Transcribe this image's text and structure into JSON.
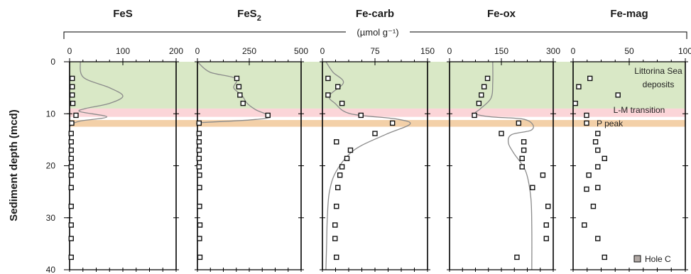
{
  "unit_label": "(µmol g⁻¹)",
  "y_axis": {
    "label": "Sediment depth (mcd)",
    "range": [
      0,
      40
    ],
    "ticks": [
      "0",
      "10",
      "20",
      "30",
      "40"
    ]
  },
  "zones": [
    {
      "label": "Littorina Sea deposits",
      "label_lines": [
        "Littorina Sea",
        "deposits"
      ],
      "depth_range": [
        0,
        9
      ],
      "color": "#d9e8c6"
    },
    {
      "label": "L-M transition",
      "label_lines": [
        "L-M transition"
      ],
      "depth_range": [
        9,
        10.6
      ],
      "color": "#fbd5d8"
    },
    {
      "label": "P peak",
      "label_lines": [
        "P peak"
      ],
      "depth_range": [
        11.2,
        12.5
      ],
      "color": "#f3d0a8"
    }
  ],
  "legend": {
    "label": "Hole C",
    "marker_color": "#b0a8a4"
  },
  "colors": {
    "marker_edge": "#111111",
    "marker_fill": "#ffffff",
    "curve": "#8a8a8a",
    "axis": "#000000"
  },
  "chart_data": [
    {
      "type": "scatter",
      "title": "FeS",
      "xlim": [
        0,
        200
      ],
      "xticks": [
        "0",
        "100",
        "200"
      ],
      "points": [
        [
          5,
          3.2
        ],
        [
          5,
          4.8
        ],
        [
          5,
          6.4
        ],
        [
          6,
          8
        ],
        [
          12,
          10.3
        ],
        [
          4,
          11.8
        ],
        [
          3,
          13.8
        ],
        [
          3,
          15.4
        ],
        [
          3,
          17
        ],
        [
          3,
          18.6
        ],
        [
          3,
          20.2
        ],
        [
          3,
          21.8
        ],
        [
          3,
          24.2
        ],
        [
          3,
          27.8
        ],
        [
          3,
          31.4
        ],
        [
          3,
          34
        ],
        [
          3,
          37.6
        ]
      ],
      "curve": [
        [
          20,
          0
        ],
        [
          26,
          3
        ],
        [
          75,
          5
        ],
        [
          100,
          6.6
        ],
        [
          75,
          8
        ],
        [
          30,
          9
        ],
        [
          20,
          9.6
        ],
        [
          70,
          10.6
        ],
        [
          20,
          11.4
        ],
        [
          5,
          12
        ],
        [
          0,
          12.5
        ]
      ]
    },
    {
      "type": "scatter",
      "title": "FeS2",
      "title_main": "FeS",
      "title_sub": "2",
      "xlim": [
        0,
        500
      ],
      "xticks": [
        "0",
        "250",
        "500"
      ],
      "points": [
        [
          190,
          3.2
        ],
        [
          200,
          4.8
        ],
        [
          205,
          6.4
        ],
        [
          220,
          8
        ],
        [
          340,
          10.3
        ],
        [
          8,
          11.8
        ],
        [
          8,
          13.8
        ],
        [
          8,
          15.4
        ],
        [
          8,
          17
        ],
        [
          8,
          18.6
        ],
        [
          8,
          20.2
        ],
        [
          10,
          21.8
        ],
        [
          10,
          24.2
        ],
        [
          10,
          27.8
        ],
        [
          12,
          31.4
        ],
        [
          10,
          34
        ],
        [
          12,
          37.6
        ]
      ],
      "curve": [
        [
          0,
          0
        ],
        [
          60,
          2
        ],
        [
          185,
          3.2
        ],
        [
          175,
          5
        ],
        [
          215,
          6.5
        ],
        [
          240,
          8
        ],
        [
          280,
          9.2
        ],
        [
          350,
          10.6
        ],
        [
          250,
          11.2
        ],
        [
          20,
          11.7
        ],
        [
          0,
          12
        ]
      ]
    },
    {
      "type": "scatter",
      "title": "Fe-carb",
      "xlim": [
        0,
        150
      ],
      "xticks": [
        "0",
        "75",
        "150"
      ],
      "points": [
        [
          8,
          3.2
        ],
        [
          22,
          4.8
        ],
        [
          8,
          6.4
        ],
        [
          28,
          8
        ],
        [
          55,
          10.3
        ],
        [
          100,
          11.8
        ],
        [
          75,
          13.8
        ],
        [
          20,
          15.4
        ],
        [
          40,
          17
        ],
        [
          35,
          18.6
        ],
        [
          28,
          20.2
        ],
        [
          25,
          21.8
        ],
        [
          22,
          24.2
        ],
        [
          20,
          27.8
        ],
        [
          18,
          31.4
        ],
        [
          18,
          34
        ],
        [
          20,
          37.6
        ]
      ],
      "curve": [
        [
          5,
          0
        ],
        [
          15,
          2
        ],
        [
          30,
          4
        ],
        [
          10,
          6.5
        ],
        [
          18,
          8
        ],
        [
          40,
          10
        ],
        [
          105,
          11
        ],
        [
          125,
          12
        ],
        [
          90,
          14
        ],
        [
          45,
          17
        ],
        [
          20,
          21
        ],
        [
          10,
          25
        ],
        [
          7,
          30
        ],
        [
          6,
          35
        ],
        [
          5,
          40
        ]
      ]
    },
    {
      "type": "scatter",
      "title": "Fe-ox",
      "xlim": [
        0,
        300
      ],
      "xticks": [
        "0",
        "150",
        "300"
      ],
      "points": [
        [
          110,
          3.2
        ],
        [
          100,
          4.8
        ],
        [
          92,
          6.4
        ],
        [
          85,
          8
        ],
        [
          72,
          10.3
        ],
        [
          200,
          11.8
        ],
        [
          150,
          13.8
        ],
        [
          215,
          15.4
        ],
        [
          215,
          17
        ],
        [
          210,
          18.6
        ],
        [
          210,
          20.2
        ],
        [
          270,
          21.8
        ],
        [
          240,
          24.2
        ],
        [
          285,
          27.8
        ],
        [
          280,
          31.4
        ],
        [
          280,
          34
        ],
        [
          195,
          37.6
        ]
      ],
      "curve": [
        [
          125,
          0
        ],
        [
          125,
          4
        ],
        [
          120,
          7
        ],
        [
          90,
          9
        ],
        [
          75,
          10
        ],
        [
          120,
          10.6
        ],
        [
          210,
          11
        ],
        [
          240,
          12
        ],
        [
          235,
          13.2
        ],
        [
          180,
          14
        ],
        [
          170,
          15.5
        ],
        [
          185,
          17.5
        ],
        [
          220,
          21
        ],
        [
          235,
          26
        ],
        [
          238,
          32
        ],
        [
          238,
          40
        ]
      ]
    },
    {
      "type": "scatter",
      "title": "Fe-mag",
      "xlim": [
        0,
        100
      ],
      "xticks": [
        "0",
        "50",
        "100"
      ],
      "points": [
        [
          15,
          3.2
        ],
        [
          5,
          4.8
        ],
        [
          40,
          6.4
        ],
        [
          2,
          8
        ],
        [
          12,
          10.3
        ],
        [
          12,
          11.8
        ],
        [
          22,
          13.8
        ],
        [
          20,
          15.4
        ],
        [
          22,
          17
        ],
        [
          28,
          18.6
        ],
        [
          22,
          20.2
        ],
        [
          14,
          21.8
        ],
        [
          22,
          24.2
        ],
        [
          12,
          24.5
        ],
        [
          18,
          27.8
        ],
        [
          10,
          31.4
        ],
        [
          22,
          34
        ],
        [
          28,
          37.6
        ]
      ],
      "curve": []
    }
  ]
}
